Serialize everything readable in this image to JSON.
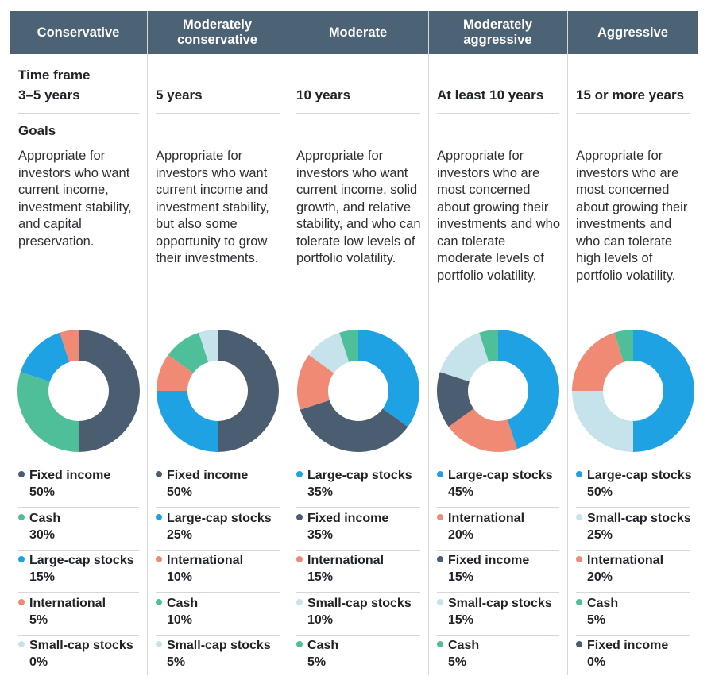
{
  "labels": {
    "time_frame": "Time frame",
    "goals": "Goals"
  },
  "colors": {
    "Fixed income": "#4b5e71",
    "Cash": "#4fbf9a",
    "Large-cap stocks": "#1fa2e4",
    "International": "#f08a75",
    "Small-cap stocks": "#c6e3ec"
  },
  "chart_data": [
    {
      "type": "pie",
      "title": "Conservative",
      "time_frame": "3–5 years",
      "goals": "Appropriate for investors who want current income, investment stability, and capital preservation.",
      "slices": [
        {
          "label": "Fixed income",
          "value": 50,
          "value_label": "50%"
        },
        {
          "label": "Cash",
          "value": 30,
          "value_label": "30%"
        },
        {
          "label": "Large-cap stocks",
          "value": 15,
          "value_label": "15%"
        },
        {
          "label": "International",
          "value": 5,
          "value_label": "5%"
        },
        {
          "label": "Small-cap stocks",
          "value": 0,
          "value_label": "0%"
        }
      ]
    },
    {
      "type": "pie",
      "title": "Moderately conservative",
      "time_frame": "5 years",
      "goals": "Appropriate for investors who want current income and investment stability, but also some opportunity to grow their investments.",
      "slices": [
        {
          "label": "Fixed income",
          "value": 50,
          "value_label": "50%"
        },
        {
          "label": "Large-cap stocks",
          "value": 25,
          "value_label": "25%"
        },
        {
          "label": "International",
          "value": 10,
          "value_label": "10%"
        },
        {
          "label": "Cash",
          "value": 10,
          "value_label": "10%"
        },
        {
          "label": "Small-cap stocks",
          "value": 5,
          "value_label": "5%"
        }
      ]
    },
    {
      "type": "pie",
      "title": "Moderate",
      "time_frame": "10 years",
      "goals": "Appropriate for investors who want current income, solid growth, and relative stability, and who can tolerate low levels of portfolio volatility.",
      "slices": [
        {
          "label": "Large-cap stocks",
          "value": 35,
          "value_label": "35%"
        },
        {
          "label": "Fixed income",
          "value": 35,
          "value_label": "35%"
        },
        {
          "label": "International",
          "value": 15,
          "value_label": "15%"
        },
        {
          "label": "Small-cap stocks",
          "value": 10,
          "value_label": "10%"
        },
        {
          "label": "Cash",
          "value": 5,
          "value_label": "5%"
        }
      ]
    },
    {
      "type": "pie",
      "title": "Moderately aggressive",
      "time_frame": "At least 10 years",
      "goals": "Appropriate for investors who are most concerned about growing their investments and who can tolerate moderate levels of portfolio volatility.",
      "slices": [
        {
          "label": "Large-cap stocks",
          "value": 45,
          "value_label": "45%"
        },
        {
          "label": "International",
          "value": 20,
          "value_label": "20%"
        },
        {
          "label": "Fixed income",
          "value": 15,
          "value_label": "15%"
        },
        {
          "label": "Small-cap stocks",
          "value": 15,
          "value_label": "15%"
        },
        {
          "label": "Cash",
          "value": 5,
          "value_label": "5%"
        }
      ]
    },
    {
      "type": "pie",
      "title": "Aggressive",
      "time_frame": "15 or more years",
      "goals": "Appropriate for investors who are most concerned about growing their investments and who can tolerate high levels of portfolio volatility.",
      "slices": [
        {
          "label": "Large-cap stocks",
          "value": 50,
          "value_label": "50%"
        },
        {
          "label": "Small-cap stocks",
          "value": 25,
          "value_label": "25%"
        },
        {
          "label": "International",
          "value": 20,
          "value_label": "20%"
        },
        {
          "label": "Cash",
          "value": 5,
          "value_label": "5%"
        },
        {
          "label": "Fixed income",
          "value": 0,
          "value_label": "0%"
        }
      ]
    }
  ]
}
